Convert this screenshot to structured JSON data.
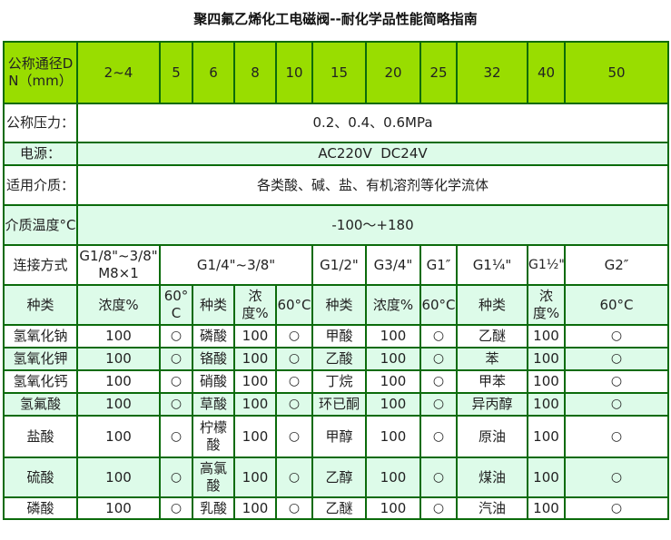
{
  "title": "聚四氟乙烯化工电磁阀--耐化学品性能简略指南",
  "header": {
    "label": "公称通径DN（mm）",
    "sizes": [
      "2~4",
      "5",
      "6",
      "8",
      "10",
      "15",
      "20",
      "25",
      "32",
      "40",
      "50"
    ]
  },
  "pressure": {
    "label": "公称压力：",
    "value": "0.2、0.4、0.6MPa"
  },
  "power": {
    "label": "电源：",
    "value": "AC220V  DC24V"
  },
  "media": {
    "label": "适用介质：",
    "value": "各类酸、碱、盐、有机溶剂等化学流体"
  },
  "temperature": {
    "label": "介质温度°C",
    "value": "-100～+180"
  },
  "connection": {
    "label": "连接方式",
    "values": [
      "G1/8\"~3/8\" M8×1",
      "G1/4\"~3/8\"",
      "G1/2\"",
      "G3/4\"",
      "G1″",
      "G1¼\"",
      "G1½\"",
      "G2″"
    ]
  },
  "columns": [
    "种类",
    "浓度%",
    "60°C",
    "种类",
    "浓度%",
    "60°C",
    "种类",
    "浓度%",
    "60°C",
    "种类",
    "浓度%",
    "60°C"
  ],
  "rows": [
    [
      "氢氧化钠",
      "100",
      "○",
      "磷酸",
      "100",
      "○",
      "甲酸",
      "100",
      "○",
      "乙醚",
      "100",
      "○"
    ],
    [
      "氢氧化钾",
      "100",
      "○",
      "铬酸",
      "100",
      "○",
      "乙酸",
      "100",
      "○",
      "苯",
      "100",
      "○"
    ],
    [
      "氢氧化钙",
      "100",
      "○",
      "硝酸",
      "100",
      "○",
      "丁烷",
      "100",
      "○",
      "甲苯",
      "100",
      "○"
    ],
    [
      "氢氟酸",
      "100",
      "○",
      "草酸",
      "100",
      "○",
      "环已酮",
      "100",
      "○",
      "异丙醇",
      "100",
      "○"
    ],
    [
      "盐酸",
      "100",
      "○",
      "柠檬酸",
      "100",
      "○",
      "甲醇",
      "100",
      "○",
      "原油",
      "100",
      "○"
    ],
    [
      "硫酸",
      "100",
      "○",
      "高氯酸",
      "100",
      "○",
      "乙醇",
      "100",
      "○",
      "煤油",
      "100",
      "○"
    ],
    [
      "磷酸",
      "100",
      "○",
      "乳酸",
      "100",
      "○",
      "乙醚",
      "100",
      "○",
      "汽油",
      "100",
      "○"
    ]
  ]
}
